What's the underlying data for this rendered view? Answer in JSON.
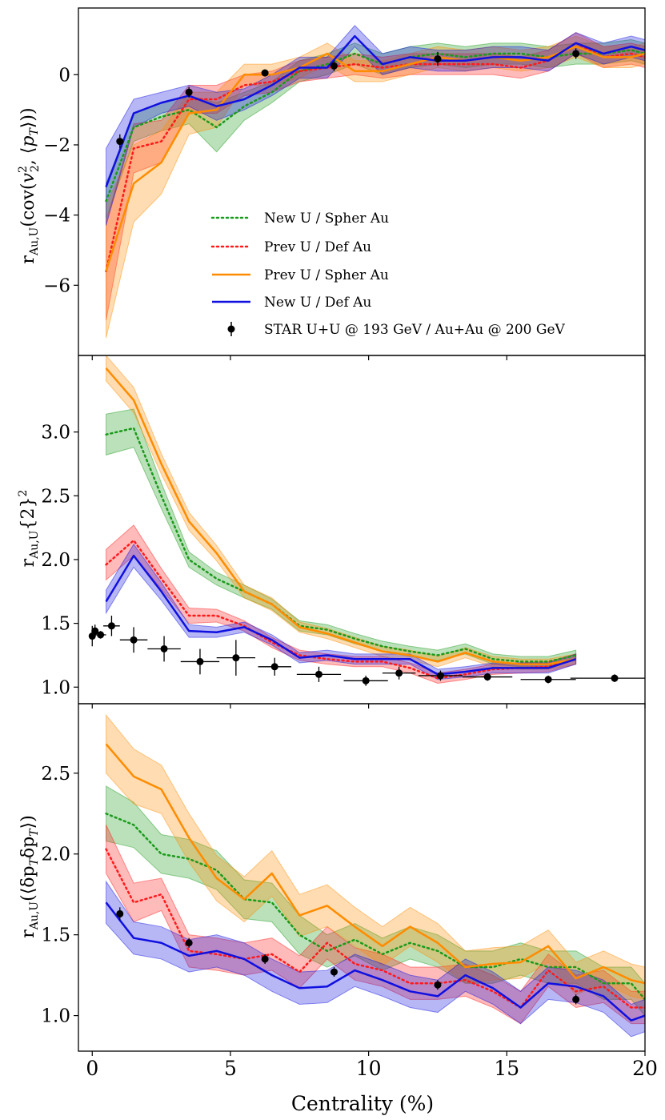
{
  "colors": {
    "green": "#1a9a1a",
    "red": "#ff1a1a",
    "orange": "#ff8c00",
    "blue": "#1010e0",
    "star": "#000000"
  },
  "xaxis": {
    "label": "Centrality (%)",
    "ticks": [
      "0",
      "5",
      "10",
      "15",
      "20"
    ],
    "range": [
      -0.5,
      20
    ]
  },
  "legend": {
    "placement": "lower right (top panel)",
    "items": [
      "New U / Spher Au",
      "Prev U / Def Au",
      "Prev U / Spher Au",
      "New U / Def Au",
      "STAR U+U @ 193 GeV / Au+Au @ 200 GeV"
    ]
  },
  "chart_data": [
    {
      "type": "line",
      "ylabel": "r_Au,U(cov(v2^2, ⟨pT⟩))",
      "yticks": [
        -6,
        -4,
        -2,
        0
      ],
      "ytick_labels": [
        "−6",
        "−4",
        "−2",
        "0"
      ],
      "ylim": [
        -8,
        1.9
      ],
      "x": [
        0.5,
        1.5,
        2.5,
        3.5,
        4.5,
        5.5,
        6.5,
        7.5,
        8.5,
        9.5,
        10.5,
        11.5,
        12.5,
        13.5,
        14.5,
        15.5,
        16.5,
        17.5,
        18.5,
        19.5,
        20
      ],
      "series": [
        {
          "name": "New U / Spher Au",
          "color": "green",
          "dash": "dotted",
          "values": [
            -3.6,
            -1.5,
            -1.2,
            -1.0,
            -1.5,
            -0.9,
            -0.5,
            0.1,
            0.3,
            0.6,
            0.3,
            0.5,
            0.6,
            0.5,
            0.6,
            0.6,
            0.5,
            0.6,
            0.6,
            0.7,
            0.6
          ],
          "band": [
            0.5,
            0.4,
            0.4,
            0.4,
            0.7,
            0.4,
            0.3,
            0.3,
            0.3,
            0.3,
            0.3,
            0.3,
            0.3,
            0.3,
            0.3,
            0.3,
            0.3,
            0.3,
            0.3,
            0.3,
            0.3
          ]
        },
        {
          "name": "Prev U / Def Au",
          "color": "red",
          "dash": "dotted",
          "values": [
            -5.6,
            -2.1,
            -1.9,
            -0.7,
            -0.7,
            -0.3,
            -0.2,
            0.1,
            0.2,
            0.3,
            0.2,
            0.3,
            0.3,
            0.3,
            0.3,
            0.2,
            0.4,
            0.9,
            0.5,
            0.6,
            0.5
          ],
          "band": [
            1.4,
            0.7,
            0.6,
            0.4,
            0.4,
            0.3,
            0.3,
            0.3,
            0.3,
            0.3,
            0.3,
            0.3,
            0.3,
            0.3,
            0.3,
            0.3,
            0.3,
            0.3,
            0.3,
            0.3,
            0.3
          ]
        },
        {
          "name": "Prev U / Spher Au",
          "color": "orange",
          "dash": "solid",
          "values": [
            -5.6,
            -3.1,
            -2.5,
            -1.1,
            -1.0,
            0.0,
            0.0,
            0.2,
            0.6,
            0.1,
            0.1,
            0.3,
            0.5,
            0.4,
            0.5,
            0.4,
            0.5,
            0.8,
            0.5,
            0.5,
            0.6
          ],
          "band": [
            1.9,
            1.1,
            0.9,
            0.6,
            0.5,
            0.3,
            0.3,
            0.3,
            0.3,
            0.3,
            0.3,
            0.3,
            0.3,
            0.3,
            0.3,
            0.3,
            0.3,
            0.3,
            0.3,
            0.3,
            0.3
          ]
        },
        {
          "name": "New U / Def Au",
          "color": "blue",
          "dash": "solid",
          "values": [
            -3.2,
            -1.1,
            -0.8,
            -0.6,
            -0.9,
            -0.7,
            -0.3,
            0.2,
            0.2,
            1.1,
            0.3,
            0.5,
            0.4,
            0.4,
            0.5,
            0.5,
            0.4,
            0.9,
            0.6,
            0.8,
            0.7
          ],
          "band": [
            1.1,
            0.4,
            0.3,
            0.3,
            0.4,
            0.3,
            0.3,
            0.3,
            0.3,
            0.3,
            0.3,
            0.3,
            0.3,
            0.3,
            0.3,
            0.3,
            0.3,
            0.3,
            0.3,
            0.3,
            0.3
          ]
        }
      ],
      "star": [
        [
          1.0,
          -1.9
        ],
        [
          3.5,
          -0.5
        ],
        [
          6.25,
          0.05
        ],
        [
          8.75,
          0.25
        ],
        [
          12.5,
          0.45
        ],
        [
          17.5,
          0.6
        ]
      ],
      "star_yerr": [
        0.2,
        0.15,
        0.1,
        0.15,
        0.2,
        0.15
      ]
    },
    {
      "type": "line",
      "ylabel": "r_Au,U{2}^2",
      "yticks": [
        1.0,
        1.5,
        2.0,
        2.5,
        3.0
      ],
      "ytick_labels": [
        "1.0",
        "1.5",
        "2.0",
        "2.5",
        "3.0"
      ],
      "ylim": [
        0.87,
        3.6
      ],
      "x": [
        0.5,
        1.5,
        2.5,
        3.5,
        4.5,
        5.5,
        6.5,
        7.5,
        8.5,
        9.5,
        10.5,
        11.5,
        12.5,
        13.5,
        14.5,
        15.5,
        16.5,
        17.5
      ],
      "series": [
        {
          "name": "New U / Spher Au",
          "color": "green",
          "dash": "dotted",
          "values": [
            2.98,
            3.03,
            2.5,
            2.0,
            1.85,
            1.75,
            1.65,
            1.48,
            1.45,
            1.38,
            1.32,
            1.28,
            1.25,
            1.3,
            1.22,
            1.2,
            1.2,
            1.25
          ],
          "band": [
            0.16,
            0.15,
            0.1,
            0.06,
            0.05,
            0.05,
            0.04,
            0.04,
            0.04,
            0.04,
            0.04,
            0.04,
            0.04,
            0.04,
            0.04,
            0.04,
            0.04,
            0.04
          ]
        },
        {
          "name": "Prev U / Def Au",
          "color": "red",
          "dash": "dotted",
          "values": [
            1.96,
            2.15,
            1.85,
            1.56,
            1.56,
            1.48,
            1.35,
            1.25,
            1.22,
            1.2,
            1.2,
            1.15,
            1.07,
            1.1,
            1.14,
            1.15,
            1.16,
            1.22
          ],
          "band": [
            0.12,
            0.12,
            0.08,
            0.06,
            0.05,
            0.04,
            0.04,
            0.04,
            0.04,
            0.04,
            0.04,
            0.04,
            0.04,
            0.04,
            0.04,
            0.04,
            0.04,
            0.04
          ]
        },
        {
          "name": "Prev U / Spher Au",
          "color": "orange",
          "dash": "solid",
          "values": [
            3.5,
            3.25,
            2.75,
            2.3,
            2.05,
            1.75,
            1.65,
            1.47,
            1.42,
            1.35,
            1.28,
            1.25,
            1.2,
            1.27,
            1.2,
            1.18,
            1.18,
            1.22
          ],
          "band": [
            0.1,
            0.1,
            0.08,
            0.07,
            0.06,
            0.05,
            0.05,
            0.04,
            0.04,
            0.04,
            0.04,
            0.04,
            0.04,
            0.04,
            0.04,
            0.04,
            0.04,
            0.04
          ]
        },
        {
          "name": "New U / Def Au",
          "color": "blue",
          "dash": "solid",
          "values": [
            1.67,
            2.03,
            1.75,
            1.44,
            1.43,
            1.47,
            1.37,
            1.23,
            1.25,
            1.22,
            1.22,
            1.22,
            1.1,
            1.12,
            1.15,
            1.15,
            1.15,
            1.22
          ],
          "band": [
            0.09,
            0.09,
            0.07,
            0.05,
            0.04,
            0.04,
            0.04,
            0.04,
            0.04,
            0.04,
            0.04,
            0.04,
            0.04,
            0.04,
            0.04,
            0.04,
            0.04,
            0.04
          ]
        }
      ],
      "star": [
        [
          0.0,
          1.4
        ],
        [
          0.1,
          1.44
        ],
        [
          0.3,
          1.41
        ],
        [
          0.7,
          1.48
        ],
        [
          1.5,
          1.37
        ],
        [
          2.6,
          1.3
        ],
        [
          3.9,
          1.2
        ],
        [
          5.2,
          1.23
        ],
        [
          6.6,
          1.16
        ],
        [
          8.2,
          1.1
        ],
        [
          9.9,
          1.05
        ],
        [
          11.1,
          1.11
        ],
        [
          12.6,
          1.09
        ],
        [
          14.3,
          1.08
        ],
        [
          16.5,
          1.06
        ],
        [
          18.9,
          1.07
        ]
      ],
      "star_yerr": [
        0.08,
        0.05,
        0.03,
        0.08,
        0.1,
        0.1,
        0.1,
        0.14,
        0.07,
        0.06,
        0.04,
        0.05,
        0.04,
        0.03,
        0.03,
        0.03
      ],
      "star_xerr": [
        0,
        0,
        0.2,
        0.3,
        0.5,
        0.6,
        0.7,
        0.7,
        0.6,
        0.8,
        0.8,
        0.6,
        0.8,
        0.9,
        1.0,
        1.6
      ]
    },
    {
      "type": "line",
      "ylabel": "r_Au,U(⟨δpTδpT⟩)",
      "yticks": [
        1.0,
        1.5,
        2.0,
        2.5
      ],
      "ytick_labels": [
        "1.0",
        "1.5",
        "2.0",
        "2.5"
      ],
      "ylim": [
        0.78,
        2.93
      ],
      "x": [
        0.5,
        1.5,
        2.5,
        3.5,
        4.5,
        5.5,
        6.5,
        7.5,
        8.5,
        9.5,
        10.5,
        11.5,
        12.5,
        13.5,
        14.5,
        15.5,
        16.5,
        17.5,
        18.5,
        19.5,
        20
      ],
      "series": [
        {
          "name": "New U / Spher Au",
          "color": "green",
          "dash": "dotted",
          "values": [
            2.25,
            2.18,
            2.0,
            1.97,
            1.9,
            1.72,
            1.7,
            1.5,
            1.4,
            1.47,
            1.38,
            1.45,
            1.4,
            1.3,
            1.3,
            1.35,
            1.3,
            1.3,
            1.2,
            1.2,
            1.1
          ],
          "band": [
            0.17,
            0.14,
            0.12,
            0.12,
            0.12,
            0.12,
            0.12,
            0.12,
            0.1,
            0.1,
            0.1,
            0.1,
            0.1,
            0.1,
            0.1,
            0.1,
            0.1,
            0.1,
            0.1,
            0.1,
            0.1
          ]
        },
        {
          "name": "Prev U / Def Au",
          "color": "red",
          "dash": "dotted",
          "values": [
            2.03,
            1.7,
            1.75,
            1.4,
            1.38,
            1.35,
            1.38,
            1.27,
            1.45,
            1.32,
            1.28,
            1.2,
            1.2,
            1.22,
            1.15,
            1.05,
            1.28,
            1.15,
            1.18,
            1.05,
            1.05
          ],
          "band": [
            0.15,
            0.12,
            0.1,
            0.1,
            0.1,
            0.1,
            0.1,
            0.1,
            0.1,
            0.1,
            0.1,
            0.1,
            0.1,
            0.1,
            0.1,
            0.1,
            0.1,
            0.1,
            0.1,
            0.1,
            0.1
          ]
        },
        {
          "name": "Prev U / Spher Au",
          "color": "orange",
          "dash": "solid",
          "values": [
            2.68,
            2.48,
            2.4,
            2.1,
            1.85,
            1.72,
            1.88,
            1.62,
            1.68,
            1.55,
            1.43,
            1.55,
            1.45,
            1.3,
            1.32,
            1.33,
            1.43,
            1.23,
            1.3,
            1.22,
            1.2
          ],
          "band": [
            0.18,
            0.17,
            0.15,
            0.15,
            0.14,
            0.14,
            0.14,
            0.13,
            0.13,
            0.12,
            0.12,
            0.12,
            0.12,
            0.1,
            0.1,
            0.1,
            0.1,
            0.1,
            0.1,
            0.1,
            0.1
          ]
        },
        {
          "name": "New U / Def Au",
          "color": "blue",
          "dash": "solid",
          "values": [
            1.7,
            1.48,
            1.45,
            1.37,
            1.4,
            1.35,
            1.25,
            1.17,
            1.18,
            1.28,
            1.22,
            1.15,
            1.12,
            1.25,
            1.17,
            1.05,
            1.2,
            1.18,
            1.12,
            0.97,
            1.0
          ],
          "band": [
            0.13,
            0.1,
            0.1,
            0.1,
            0.1,
            0.1,
            0.1,
            0.1,
            0.1,
            0.1,
            0.1,
            0.1,
            0.1,
            0.1,
            0.1,
            0.1,
            0.1,
            0.1,
            0.1,
            0.1,
            0.1
          ]
        }
      ],
      "star": [
        [
          1.0,
          1.63
        ],
        [
          3.5,
          1.45
        ],
        [
          6.25,
          1.35
        ],
        [
          8.75,
          1.27
        ],
        [
          12.5,
          1.19
        ],
        [
          17.5,
          1.1
        ]
      ],
      "star_yerr": [
        0.04,
        0.03,
        0.03,
        0.03,
        0.03,
        0.03
      ]
    }
  ]
}
